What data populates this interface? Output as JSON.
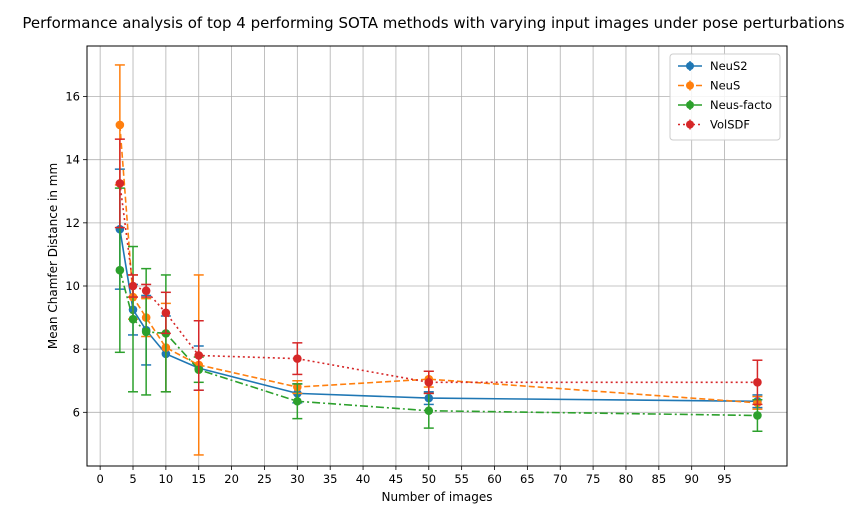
{
  "chart_data": {
    "type": "line",
    "title": "Performance analysis of top 4 performing SOTA methods with varying input images under pose perturbations",
    "xlabel": "Number of images",
    "ylabel": "Mean Chamfer Distance in mm",
    "xlim": [
      -2,
      104.5
    ],
    "ylim": [
      4.3,
      17.6
    ],
    "xticks": [
      0,
      5,
      10,
      15,
      20,
      25,
      30,
      35,
      40,
      45,
      50,
      55,
      60,
      65,
      70,
      75,
      80,
      85,
      90,
      95
    ],
    "xtick_labels": [
      "0",
      "5",
      "10",
      "15",
      "20",
      "25",
      "30",
      "35",
      "40",
      "45",
      "50",
      "55",
      "60",
      "65",
      "70",
      "75",
      "80",
      "85",
      "90",
      "95"
    ],
    "yticks": [
      6,
      8,
      10,
      12,
      14,
      16
    ],
    "ytick_labels": [
      "6",
      "8",
      "10",
      "12",
      "14",
      "16"
    ],
    "grid": true,
    "legend_position": "top-right",
    "x": [
      3,
      5,
      7,
      10,
      15,
      30,
      50,
      100
    ],
    "series": [
      {
        "name": "NeuS2",
        "color": "#1f77b4",
        "line_style": "solid",
        "values": [
          11.8,
          9.25,
          8.6,
          7.85,
          7.4,
          6.6,
          6.45,
          6.35
        ],
        "errors": [
          1.9,
          0.8,
          1.1,
          1.2,
          0.7,
          0.3,
          0.2,
          0.2
        ]
      },
      {
        "name": "NeuS",
        "color": "#ff7f0e",
        "line_style": "dashed",
        "values": [
          15.1,
          9.65,
          9.0,
          8.05,
          7.5,
          6.8,
          7.05,
          6.3
        ],
        "errors": [
          1.9,
          0.7,
          0.6,
          1.4,
          2.85,
          0.2,
          0.25,
          0.2
        ]
      },
      {
        "name": "Neus-facto",
        "color": "#2ca02c",
        "line_style": "dashdot",
        "values": [
          10.5,
          8.95,
          8.55,
          8.5,
          7.35,
          6.35,
          6.05,
          5.9
        ],
        "errors": [
          2.6,
          2.3,
          2.0,
          1.85,
          0.4,
          0.55,
          0.55,
          0.5
        ]
      },
      {
        "name": "VolSDF",
        "color": "#d62728",
        "line_style": "dotted",
        "values": [
          13.25,
          10.0,
          9.85,
          9.15,
          7.8,
          7.7,
          6.95,
          6.95
        ],
        "errors": [
          1.4,
          0.35,
          0.2,
          0.65,
          1.1,
          0.5,
          0.35,
          0.7
        ]
      }
    ]
  }
}
